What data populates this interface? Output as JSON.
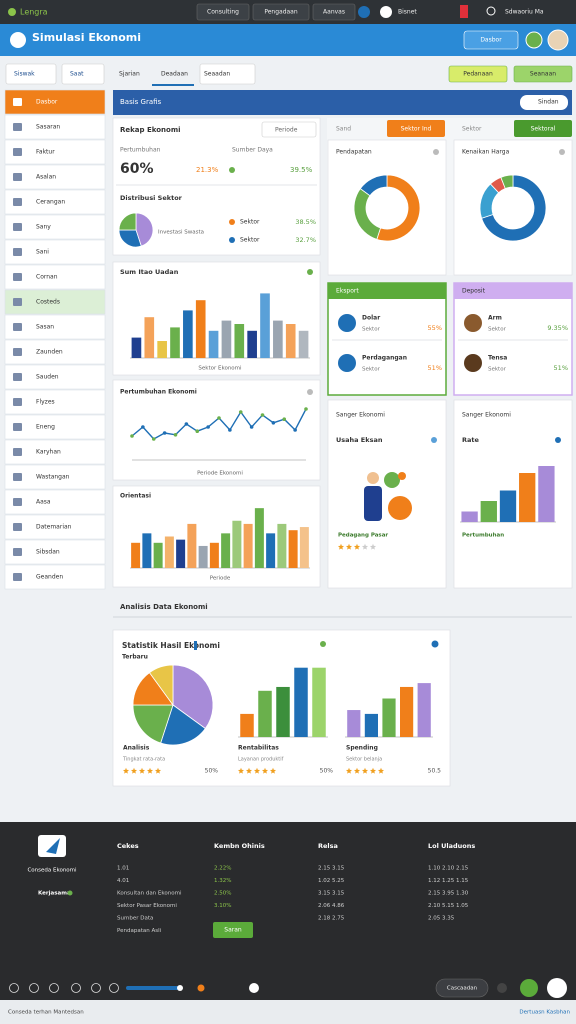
{
  "topbar": {
    "brand": "Lengra",
    "tabs": [
      "Consulting",
      "Pengadaan",
      "Aanvas"
    ],
    "badge": "Bisnet",
    "user": "Sdwaoriu Ma"
  },
  "header": {
    "title": "Simulasi Ekonomi",
    "button": "Dasbor"
  },
  "toolbar": {
    "filters": [
      "Siswak",
      "Saat"
    ],
    "tabs": [
      "Sjarian",
      "Deadaan",
      "Seaadan"
    ],
    "actions": [
      "Pedanaan",
      "Seanaan"
    ]
  },
  "sidebar": [
    "Dasbor",
    "Sasaran",
    "Faktur",
    "Asalan",
    "Cerangan",
    "Sany",
    "Sani",
    "Cornan",
    "Costeds",
    "Sasan",
    "Zaunden",
    "Sauden",
    "Flyzes",
    "Eneng",
    "Karyhan",
    "Wastangan",
    "Aasa",
    "Datemarian",
    "Sibsdan",
    "Geanden"
  ],
  "main": {
    "title": "Basis Grafis",
    "search": "Sindan"
  },
  "summary": {
    "title": "Rekap Ekonomi",
    "filter": "Periode",
    "growth_label": "Pertumbuhan",
    "growth": "60%",
    "resource_label": "Sumber Daya",
    "stats": [
      "21.3%",
      "39.5%"
    ],
    "dist_title": "Distribusi Sektor",
    "pie": {
      "values": [
        45,
        30,
        25
      ],
      "colors": [
        "#a78bd8",
        "#1f6fb5",
        "#6ab04c"
      ]
    },
    "pie_label": "Investasi Swasta",
    "rows": [
      {
        "name": "Sektor",
        "value": "38.5%"
      },
      {
        "name": "Sektor",
        "value": "32.7%"
      }
    ]
  },
  "sector_tabs": [
    "Sand",
    "Sektor Ind",
    "Sektor",
    "Sektoral"
  ],
  "donuts": [
    {
      "title": "Pendapatan",
      "values": [
        55,
        30,
        15
      ],
      "colors": [
        "#f07f1a",
        "#6ab04c",
        "#1f6fb5"
      ]
    },
    {
      "title": "Kenaikan Harga",
      "values": [
        70,
        18,
        6,
        6
      ],
      "colors": [
        "#1f6fb5",
        "#3aa0d0",
        "#e05a4a",
        "#6ab04c"
      ]
    }
  ],
  "bar1": {
    "title": "Sum Itao Uadan",
    "xlabel": "Sektor Ekonomi",
    "ylim": [
      0,
      100
    ],
    "values": [
      30,
      60,
      25,
      45,
      70,
      85,
      40,
      55,
      50,
      40,
      95,
      55,
      50,
      40
    ],
    "colors": [
      "#1f3f8f",
      "#f4a259",
      "#e8c547",
      "#6ab04c",
      "#1f6fb5",
      "#f07f1a",
      "#5aa0d8",
      "#9aa5b1",
      "#6ab04c",
      "#1f3f8f",
      "#5aa0d8",
      "#9aa5b1",
      "#f4a259",
      "#b0b7bf"
    ]
  },
  "line": {
    "title": "Pertumbuhan Ekonomi",
    "xlabel": "Periode Ekonomi",
    "ylim": [
      0,
      100
    ],
    "color": "#1f6fb5",
    "colors": [
      "#6ab04c",
      "#1f6fb5"
    ],
    "values": [
      40,
      55,
      35,
      45,
      42,
      60,
      48,
      55,
      70,
      50,
      80,
      55,
      75,
      62,
      68,
      50,
      85
    ]
  },
  "bar3": {
    "title": "Orientasi",
    "xlabel": "Periode",
    "ylim": [
      0,
      100
    ],
    "values": [
      40,
      55,
      40,
      50,
      45,
      70,
      35,
      40,
      55,
      75,
      70,
      95,
      55,
      70,
      60,
      65
    ],
    "colors": [
      "#f07f1a",
      "#1f6fb5",
      "#6ab04c",
      "#f4b26b",
      "#1f3f8f",
      "#f4a259",
      "#9aa5b1",
      "#f07f1a",
      "#6ab04c",
      "#9cc97a",
      "#f4a259",
      "#6ab04c",
      "#1f6fb5",
      "#9cc97a",
      "#f07f1a",
      "#f4c28b"
    ]
  },
  "export": {
    "title": "Eksport",
    "rows": [
      {
        "name": "Dolar",
        "sub": "Sektor",
        "value": "55%"
      },
      {
        "name": "Perdagangan",
        "sub": "Sektor",
        "value": "51%"
      }
    ]
  },
  "deposit": {
    "title": "Deposit",
    "rows": [
      {
        "name": "Arm",
        "sub": "Sektor",
        "value": "9.35%"
      },
      {
        "name": "Tensa",
        "sub": "Sektor",
        "value": "51%"
      }
    ]
  },
  "illustration": {
    "title": "Sanger Ekonomi",
    "subtitle": "Usaha Eksan",
    "caption": "Pedagang Pasar",
    "rating": 3
  },
  "rate": {
    "title": "Sanger Ekonomi",
    "subtitle": "Rate",
    "caption": "Pertumbuhan",
    "ylim": [
      0,
      100
    ],
    "values": [
      15,
      30,
      45,
      70,
      80
    ],
    "colors": [
      "#a78bd8",
      "#6ab04c",
      "#1f6fb5",
      "#f07f1a",
      "#a78bd8"
    ]
  },
  "section": "Analisis Data Ekonomi",
  "stats": {
    "title": "Statistik Hasil Ekonomi",
    "subtitle": "Terbaru",
    "pie": {
      "values": [
        35,
        20,
        20,
        15,
        10
      ],
      "colors": [
        "#a78bd8",
        "#1f6fb5",
        "#6ab04c",
        "#f07f1a",
        "#e8c547"
      ]
    },
    "bars_a": {
      "ylim": [
        0,
        100
      ],
      "values": [
        30,
        60,
        65,
        90,
        90
      ],
      "colors": [
        "#f07f1a",
        "#6ab04c",
        "#3c8f3c",
        "#1f6fb5",
        "#9cd46a"
      ]
    },
    "bars_b": {
      "ylim": [
        0,
        100
      ],
      "values": [
        35,
        30,
        50,
        65,
        70
      ],
      "colors": [
        "#a78bd8",
        "#1f6fb5",
        "#6ab04c",
        "#f07f1a",
        "#a78bd8"
      ]
    },
    "items": [
      {
        "name": "Analisis",
        "sub": "Tingkat rata-rata",
        "rating": 5,
        "value": "50%"
      },
      {
        "name": "Rentabilitas",
        "sub": "Layanan produktif",
        "rating": 5,
        "value": "50%"
      },
      {
        "name": "Spending",
        "sub": "Sektor belanja",
        "rating": 5,
        "value": "50.5"
      }
    ]
  },
  "footer": {
    "brand": [
      "Conseda Ekonomi",
      "Kerjasama"
    ],
    "columns": [
      {
        "title": "Cekes",
        "items": [
          "1.01",
          "4.01",
          "Konsultan dan Ekonomi",
          "Sektor Pasar Ekonomi",
          "Sumber Data",
          "Pendapatan Asli"
        ]
      },
      {
        "title": "Kembn Ohinis",
        "items": [
          "2.22%",
          "1.32%",
          "2.50%",
          "3.10%"
        ]
      },
      {
        "title": "Relsa",
        "items": [
          "2.15 3.15",
          "1.02 5.25",
          "3.15 3.15",
          "2.06 4.86",
          "2.18 2.75"
        ]
      },
      {
        "title": "Lol Uladuons",
        "items": [
          "1.10 2.10 2.15",
          "1.12 1.25 1.15",
          "2.15 3.95 1.30",
          "2.10 5.15 1.05",
          "2.05 3.35"
        ]
      }
    ],
    "button": "Saran",
    "pill": "Cascaadan"
  },
  "strip": {
    "left": "Conseda terhan Mantedsan",
    "right": "Dertuasn Kasbhan"
  }
}
